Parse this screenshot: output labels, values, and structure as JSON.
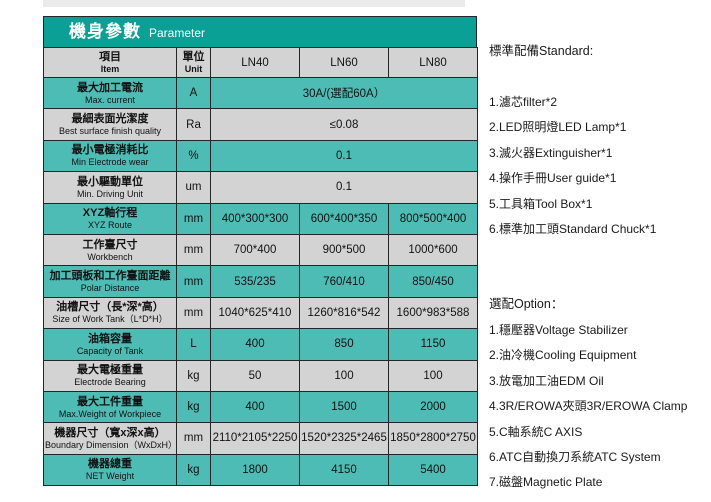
{
  "colors": {
    "title_bar": "#0aa095",
    "row_teal": "#4dbcb4",
    "row_gray": "#d3d3d3",
    "header_row": "#d3d3d3",
    "border": "#222725",
    "title_text": "#ffffff",
    "body_text": "#121212"
  },
  "table": {
    "title_zh": "機身參數",
    "title_en": "Parameter",
    "columns": {
      "item_zh": "項目",
      "item_en": "Item",
      "unit_zh": "單位",
      "unit_en": "Unit",
      "models": [
        "LN40",
        "LN60",
        "LN80"
      ]
    },
    "rows": [
      {
        "item_zh": "最大加工電流",
        "item_en": "Max. current",
        "unit": "A",
        "span": "30A/(選配60A）"
      },
      {
        "item_zh": "最細表面光潔度",
        "item_en": "Best surface finish quality",
        "unit": "Ra",
        "span": "≤0.08"
      },
      {
        "item_zh": "最小電極消耗比",
        "item_en": "Min Electrode wear",
        "unit": "%",
        "span": "0.1"
      },
      {
        "item_zh": "最小驅動單位",
        "item_en": "Min. Driving Unit",
        "unit": "um",
        "span": "0.1"
      },
      {
        "item_zh": "XYZ軸行程",
        "item_en": "XYZ Route",
        "unit": "mm",
        "values": [
          "400*300*300",
          "600*400*350",
          "800*500*400"
        ]
      },
      {
        "item_zh": "工作臺尺寸",
        "item_en": "Workbench",
        "unit": "mm",
        "values": [
          "700*400",
          "900*500",
          "1000*600"
        ]
      },
      {
        "item_zh": "加工頭板和工作臺面距離",
        "item_en": "Polar Distance",
        "unit": "mm",
        "values": [
          "535/235",
          "760/410",
          "850/450"
        ]
      },
      {
        "item_zh": "油槽尺寸（長*深*高）",
        "item_en": "Size of Work Tank（L*D*H）",
        "unit": "mm",
        "values": [
          "1040*625*410",
          "1260*816*542",
          "1600*983*588"
        ]
      },
      {
        "item_zh": "油箱容量",
        "item_en": "Capacity of Tank",
        "unit": "L",
        "values": [
          "400",
          "850",
          "1150"
        ]
      },
      {
        "item_zh": "最大電極重量",
        "item_en": "Electrode Bearing",
        "unit": "kg",
        "values": [
          "50",
          "100",
          "100"
        ]
      },
      {
        "item_zh": "最大工件重量",
        "item_en": "Max.Weight of Workpiece",
        "unit": "kg",
        "values": [
          "400",
          "1500",
          "2000"
        ]
      },
      {
        "item_zh": "機器尺寸（寬x深x高）",
        "item_en": "Boundary Dimension（WxDxH）",
        "unit": "mm",
        "values": [
          "2110*2105*2250",
          "1520*2325*2465",
          "1850*2800*2750"
        ]
      },
      {
        "item_zh": "機器總重",
        "item_en": "NET Weight",
        "unit": "kg",
        "values": [
          "1800",
          "4150",
          "5400"
        ]
      }
    ]
  },
  "standard": {
    "heading": "標準配備Standard:",
    "items": [
      "1.濾芯filter*2",
      "2.LED照明燈LED Lamp*1",
      "3.滅火器Extinguisher*1",
      "4.操作手冊User guide*1",
      "5.工具箱Tool Box*1",
      "6.標準加工頭Standard Chuck*1"
    ]
  },
  "options": {
    "heading": "選配Option：",
    "items": [
      "1.穩壓器Voltage Stabilizer",
      "2.油冷機Cooling Equipment",
      "3.放電加工油EDM Oil",
      "4.3R/EROWA夾頭3R/EROWA Clamp",
      "5.C軸系統C AXIS",
      "6.ATC自動換刀系統ATC System",
      "7.磁盤Magnetic Plate"
    ]
  }
}
